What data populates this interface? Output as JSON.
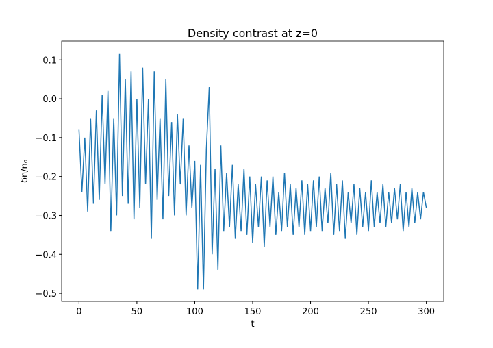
{
  "chart_data": {
    "type": "line",
    "title": "Density contrast at z=0",
    "xlabel": "t",
    "ylabel": "δn/n₀",
    "x": [
      0,
      2.5,
      5,
      7.5,
      10,
      12.5,
      15,
      17.5,
      20,
      22.5,
      25,
      27.5,
      30,
      32.5,
      35,
      37.5,
      40,
      42.5,
      45,
      47.5,
      50,
      52.5,
      55,
      57.5,
      60,
      62.5,
      65,
      67.5,
      70,
      72.5,
      75,
      77.5,
      80,
      82.5,
      85,
      87.5,
      90,
      92.5,
      95,
      97.5,
      100,
      102.5,
      105,
      107.5,
      110,
      112.5,
      115,
      117.5,
      120,
      122.5,
      125,
      127.5,
      130,
      132.5,
      135,
      137.5,
      140,
      142.5,
      145,
      147.5,
      150,
      152.5,
      155,
      157.5,
      160,
      162.5,
      165,
      167.5,
      170,
      172.5,
      175,
      177.5,
      180,
      182.5,
      185,
      187.5,
      190,
      192.5,
      195,
      197.5,
      200,
      202.5,
      205,
      207.5,
      210,
      212.5,
      215,
      217.5,
      220,
      222.5,
      225,
      227.5,
      230,
      232.5,
      235,
      237.5,
      240,
      242.5,
      245,
      247.5,
      250,
      252.5,
      255,
      257.5,
      260,
      262.5,
      265,
      267.5,
      270,
      272.5,
      275,
      277.5,
      280,
      282.5,
      285,
      287.5,
      290,
      292.5,
      295,
      297.5,
      300
    ],
    "series": [
      {
        "color": "#1f77b4",
        "values": [
          -0.08,
          -0.24,
          -0.1,
          -0.29,
          -0.05,
          -0.27,
          -0.03,
          -0.26,
          0.01,
          -0.22,
          0.02,
          -0.34,
          -0.05,
          -0.3,
          0.115,
          -0.25,
          0.05,
          -0.27,
          0.07,
          -0.31,
          0.0,
          -0.28,
          0.08,
          -0.22,
          0.0,
          -0.36,
          0.07,
          -0.26,
          -0.05,
          -0.31,
          0.05,
          -0.25,
          -0.06,
          -0.3,
          -0.04,
          -0.22,
          -0.05,
          -0.3,
          -0.12,
          -0.28,
          -0.16,
          -0.49,
          -0.17,
          -0.49,
          -0.13,
          0.03,
          -0.4,
          -0.18,
          -0.44,
          -0.12,
          -0.34,
          -0.19,
          -0.33,
          -0.17,
          -0.36,
          -0.22,
          -0.34,
          -0.18,
          -0.35,
          -0.2,
          -0.37,
          -0.22,
          -0.33,
          -0.2,
          -0.38,
          -0.21,
          -0.33,
          -0.2,
          -0.35,
          -0.24,
          -0.34,
          -0.19,
          -0.33,
          -0.22,
          -0.35,
          -0.23,
          -0.33,
          -0.21,
          -0.35,
          -0.22,
          -0.34,
          -0.21,
          -0.33,
          -0.2,
          -0.34,
          -0.23,
          -0.32,
          -0.19,
          -0.35,
          -0.22,
          -0.34,
          -0.21,
          -0.36,
          -0.24,
          -0.32,
          -0.22,
          -0.35,
          -0.23,
          -0.33,
          -0.24,
          -0.34,
          -0.21,
          -0.33,
          -0.24,
          -0.32,
          -0.22,
          -0.33,
          -0.24,
          -0.32,
          -0.23,
          -0.31,
          -0.22,
          -0.34,
          -0.24,
          -0.33,
          -0.23,
          -0.32,
          -0.24,
          -0.31,
          -0.24,
          -0.28
        ]
      }
    ],
    "xlim": [
      -15,
      315
    ],
    "xticks": [
      0,
      50,
      100,
      150,
      200,
      250,
      300
    ],
    "ylim": [
      -0.521,
      0.148
    ],
    "yticks": [
      {
        "value": -0.5,
        "label": "−0.5"
      },
      {
        "value": -0.4,
        "label": "−0.4"
      },
      {
        "value": -0.3,
        "label": "−0.3"
      },
      {
        "value": -0.2,
        "label": "−0.2"
      },
      {
        "value": -0.1,
        "label": "−0.1"
      },
      {
        "value": 0,
        "label": "0.0"
      },
      0.1
    ]
  }
}
